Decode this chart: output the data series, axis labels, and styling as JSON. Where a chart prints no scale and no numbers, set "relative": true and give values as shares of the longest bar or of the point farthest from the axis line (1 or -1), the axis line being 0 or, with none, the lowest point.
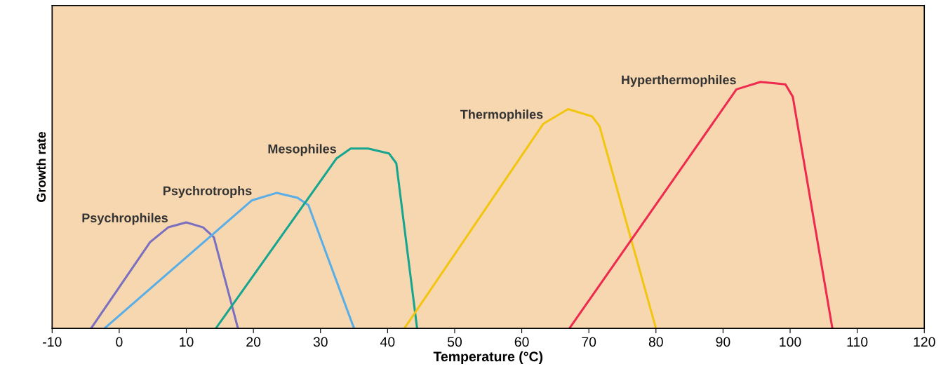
{
  "chart_data": {
    "type": "line",
    "relative": true,
    "xlabel": "Temperature (°C)",
    "ylabel": "Growth rate",
    "xlim": [
      -10,
      120
    ],
    "xticks": [
      -10,
      0,
      10,
      20,
      30,
      40,
      50,
      60,
      70,
      80,
      90,
      100,
      110,
      120
    ],
    "tick_labels": "x",
    "grid": false,
    "legend": false,
    "marker": "none",
    "line_style": "solid",
    "series": [
      {
        "name": "Psychrophiles",
        "color": "#7b6fc0",
        "x": [
          -4.2,
          4.6,
          7.3,
          10,
          12.5,
          14.1,
          17.7
        ],
        "values": [
          0,
          0.35,
          0.41,
          0.43,
          0.41,
          0.37,
          0
        ]
      },
      {
        "name": "Psychrotrophs",
        "color": "#5aaee8",
        "x": [
          -2.2,
          19.8,
          23.5,
          26.6,
          28.2,
          35
        ],
        "values": [
          0,
          0.52,
          0.55,
          0.53,
          0.5,
          0
        ]
      },
      {
        "name": "Mesophiles",
        "color": "#16a58e",
        "x": [
          14.4,
          32.4,
          34.5,
          37.1,
          40.2,
          41.3,
          44.4
        ],
        "values": [
          0,
          0.69,
          0.73,
          0.73,
          0.71,
          0.67,
          0
        ]
      },
      {
        "name": "Thermophiles",
        "color": "#f2c511",
        "x": [
          42.5,
          63.2,
          66.9,
          70.5,
          71.6,
          80
        ],
        "values": [
          0,
          0.83,
          0.89,
          0.86,
          0.82,
          0
        ]
      },
      {
        "name": "Hyperthermophiles",
        "color": "#ee2b4f",
        "x": [
          67.1,
          92,
          95.6,
          99.3,
          100.4,
          106.3
        ],
        "values": [
          0,
          0.97,
          1,
          0.99,
          0.94,
          0
        ]
      }
    ]
  }
}
